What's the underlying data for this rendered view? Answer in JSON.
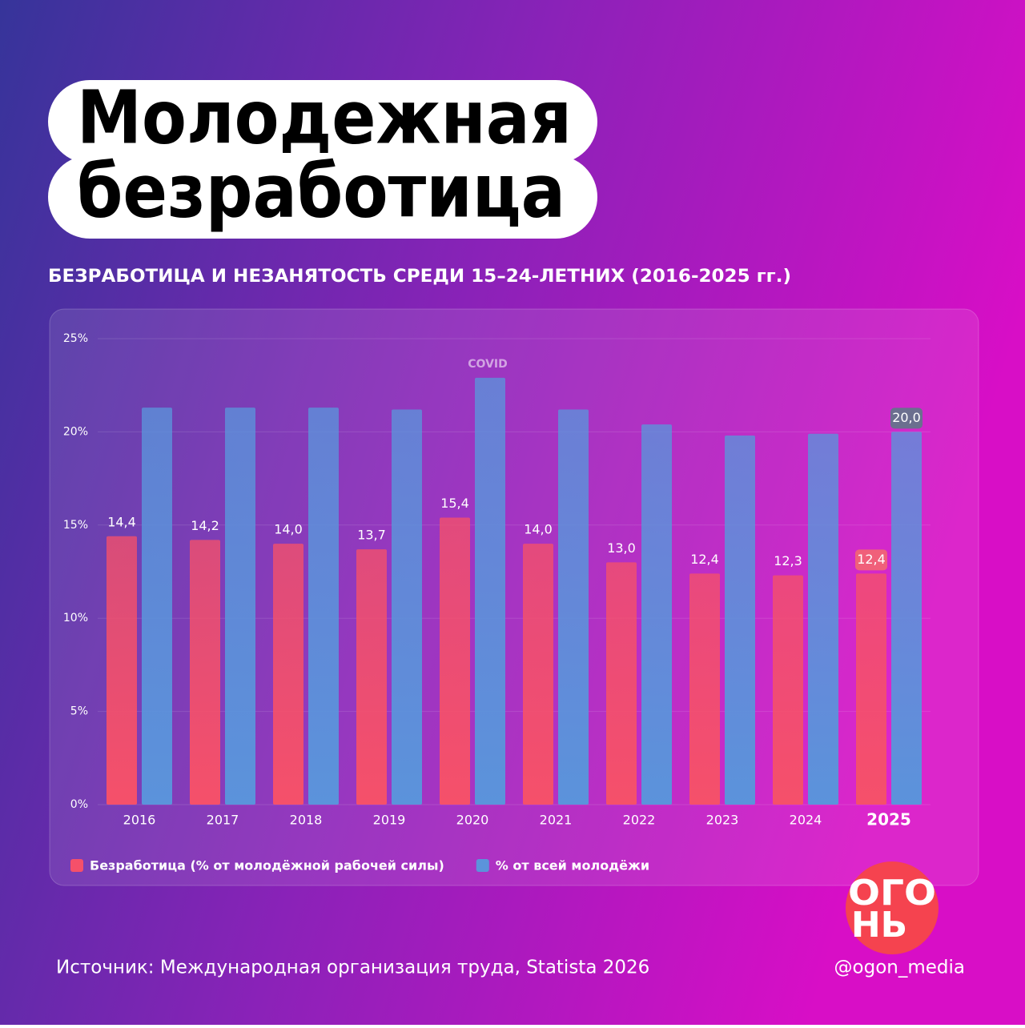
{
  "chart_data": {
    "type": "bar",
    "title": [
      "Молодежная",
      "безработица"
    ],
    "subtitle": "БЕЗРАБОТИЦА И НЕЗАНЯТОСТЬ СРЕДИ 15–24-ЛЕТНИХ (2016-2025 гг.)",
    "categories": [
      "2016",
      "2017",
      "2018",
      "2019",
      "2020",
      "2021",
      "2022",
      "2023",
      "2024",
      "2025"
    ],
    "series": [
      {
        "name": "Безработица (% от молодёжной рабочей силы)",
        "color": "#f5506a",
        "values": [
          14.4,
          14.2,
          14.0,
          13.7,
          15.4,
          14.0,
          13.0,
          12.4,
          12.3,
          12.4
        ],
        "value_labels": [
          "14,4",
          "14,2",
          "14,0",
          "13,7",
          "15,4",
          "14,0",
          "13,0",
          "12,4",
          "12,3",
          "12,4"
        ]
      },
      {
        "name": "% от всей молодёжи",
        "color": "#5b93db",
        "values": [
          21.3,
          21.3,
          21.3,
          21.2,
          22.9,
          21.2,
          20.4,
          19.8,
          19.9,
          20.0
        ],
        "value_labels": [
          null,
          null,
          null,
          null,
          null,
          null,
          null,
          null,
          null,
          "20,0"
        ]
      }
    ],
    "ylim": [
      0,
      25
    ],
    "yticks": [
      {
        "value": 0,
        "label": "0%"
      },
      {
        "value": 5,
        "label": "5%"
      },
      {
        "value": 10,
        "label": "10%"
      },
      {
        "value": 15,
        "label": "15%"
      },
      {
        "value": 20,
        "label": "20%"
      },
      {
        "value": 25,
        "label": "25%"
      }
    ],
    "grid": true,
    "annotation": {
      "text": "COVID",
      "category": "2020"
    },
    "legend": "bottom-left",
    "source": "Источник:  Международная организация труда, Statista 2026",
    "handle": "@ogon_media",
    "logo": [
      "ОГО",
      "НЬ"
    ]
  }
}
